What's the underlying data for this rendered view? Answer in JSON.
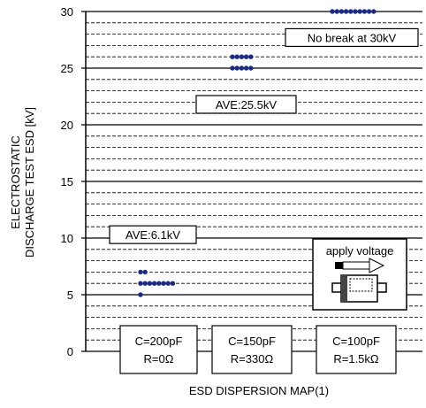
{
  "chart_data": {
    "type": "scatter",
    "title": "",
    "xlabel": "ESD DISPERSION MAP(1)",
    "ylabel_lines": [
      "ELECTROSTATIC",
      "DISCHARGE TEST ESD [kV]"
    ],
    "ylim": [
      0,
      30
    ],
    "yticks": [
      0,
      5,
      10,
      15,
      20,
      25,
      30
    ],
    "minor_step": 1,
    "grid": true,
    "categories": [
      {
        "c_label": "C=200pF",
        "r_label": "R=0Ω"
      },
      {
        "c_label": "C=150pF",
        "r_label": "R=330Ω"
      },
      {
        "c_label": "C=100pF",
        "r_label": "R=1.5kΩ"
      }
    ],
    "series": [
      {
        "category": 0,
        "points": [
          {
            "v": 5,
            "n": 1
          },
          {
            "v": 6,
            "n": 8
          },
          {
            "v": 7,
            "n": 2
          }
        ]
      },
      {
        "category": 1,
        "points": [
          {
            "v": 25,
            "n": 5
          },
          {
            "v": 26,
            "n": 5
          }
        ]
      },
      {
        "category": 2,
        "points": [
          {
            "v": 30,
            "n": 10
          }
        ]
      }
    ],
    "annotations": [
      {
        "text": "AVE:6.1kV",
        "category": 0,
        "y": 10.3
      },
      {
        "text": "AVE:25.5kV",
        "category": 1,
        "y": 21.8
      },
      {
        "text": "No break at 30kV",
        "category": 2,
        "y": 27.7
      }
    ],
    "inset": {
      "label": "apply voltage"
    },
    "marker_color": "#1a2a8a"
  }
}
